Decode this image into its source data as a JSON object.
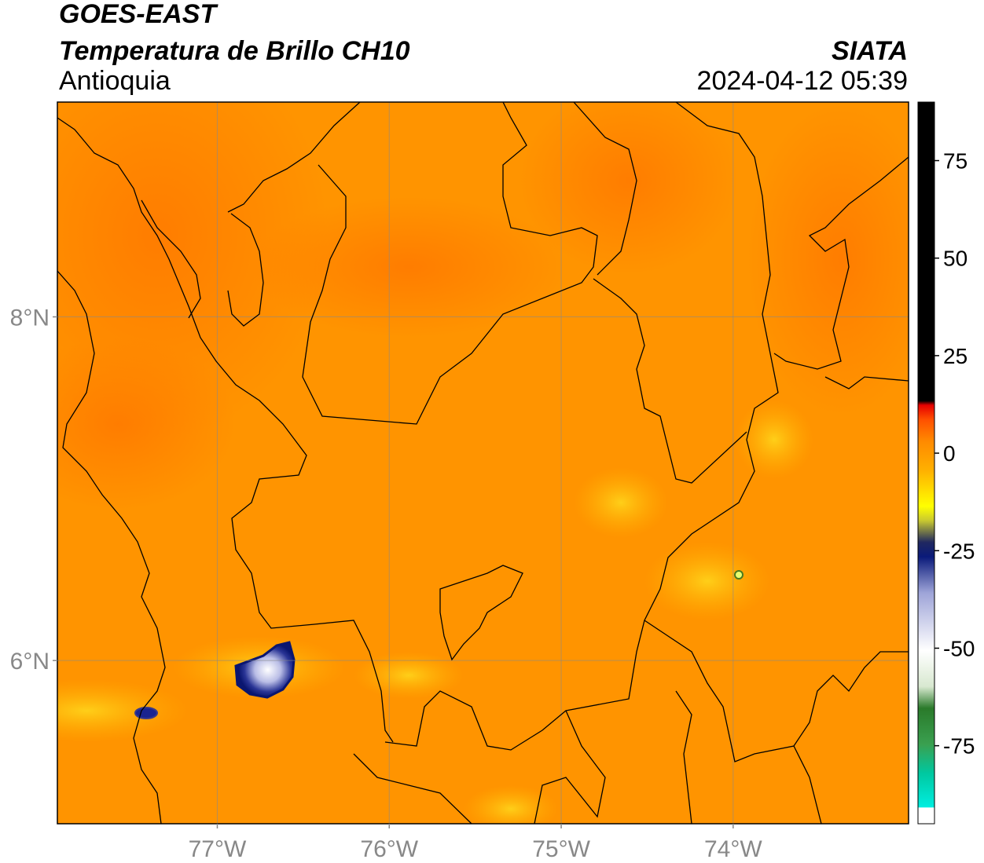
{
  "header": {
    "satellite": "GOES-EAST",
    "product": "Temperatura de Brillo CH10",
    "region": "Antioquia",
    "agency": "SIATA",
    "datetime": "2024-04-12 05:39"
  },
  "map": {
    "lon_range": [
      -77.93,
      -72.98
    ],
    "lat_range": [
      5.05,
      9.25
    ],
    "lon_ticks": [
      {
        "value": -77,
        "label": "77°W"
      },
      {
        "value": -76,
        "label": "76°W"
      },
      {
        "value": -75,
        "label": "75°W"
      },
      {
        "value": -74,
        "label": "74°W"
      }
    ],
    "lat_ticks": [
      {
        "value": 8,
        "label": "8°N"
      },
      {
        "value": 6,
        "label": "6°N"
      }
    ],
    "gridlines": true
  },
  "colorbar": {
    "range": [
      -95,
      90
    ],
    "ticks": [
      {
        "value": 75,
        "label": "75"
      },
      {
        "value": 50,
        "label": "50"
      },
      {
        "value": 25,
        "label": "25"
      },
      {
        "value": 0,
        "label": "0"
      },
      {
        "value": -25,
        "label": "-25"
      },
      {
        "value": -50,
        "label": "-50"
      },
      {
        "value": -75,
        "label": "-75"
      }
    ],
    "colors": {
      "warm": "#000000",
      "red": "#e60000",
      "orange": "#ff8a00",
      "yellow": "#ffff00",
      "navy": "#0a1a7a",
      "white": "#ffffff",
      "green": "#2e8b2e",
      "cyan": "#00e6d8"
    }
  }
}
